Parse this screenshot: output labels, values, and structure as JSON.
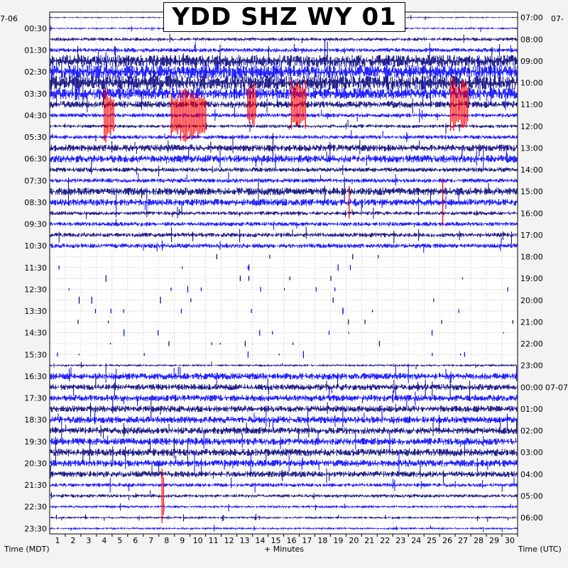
{
  "chart_data": {
    "type": "helicorder",
    "title": "YDD SHZ WY 01",
    "xlabel": "+ Minutes",
    "ylabel_left": "Time (MDT)",
    "ylabel_right": "Time (UTC)",
    "date_left": "7-06",
    "date_right_top": "07-",
    "date_right_rollover": "07-07",
    "xlim": [
      0,
      30
    ],
    "x_ticks": [
      "1",
      "2",
      "3",
      "4",
      "5",
      "6",
      "7",
      "8",
      "9",
      "10",
      "11",
      "12",
      "13",
      "14",
      "15",
      "16",
      "17",
      "18",
      "19",
      "20",
      "21",
      "22",
      "23",
      "24",
      "25",
      "26",
      "27",
      "28",
      "29",
      "30"
    ],
    "rows_count": 48,
    "row_minutes": 30,
    "left_labels": [
      "00:30",
      "01:30",
      "02:30",
      "03:30",
      "04:30",
      "05:30",
      "06:30",
      "07:30",
      "08:30",
      "09:30",
      "10:30",
      "11:30",
      "12:30",
      "13:30",
      "14:30",
      "15:30",
      "16:30",
      "17:30",
      "18:30",
      "19:30",
      "20:30",
      "21:30",
      "22:30",
      "23:30"
    ],
    "right_labels": [
      "07:00",
      "08:00",
      "09:00",
      "10:00",
      "11:00",
      "12:00",
      "13:00",
      "14:00",
      "15:00",
      "16:00",
      "17:00",
      "18:00",
      "19:00",
      "20:00",
      "21:00",
      "22:00",
      "23:00",
      "00:00",
      "01:00",
      "02:00",
      "03:00",
      "04:00",
      "05:00",
      "06:00"
    ],
    "trace_colors": [
      "#00007a",
      "#0000ff"
    ],
    "clip_color": "#ff0000",
    "grid": true,
    "grid_color": "#9a9a9a",
    "background": "#ffffff",
    "amplitude_levels": [
      0.18,
      0.25,
      0.45,
      0.55,
      1.6,
      1.8,
      1.9,
      1.5,
      0.9,
      0.55,
      0.45,
      0.5,
      0.9,
      1.0,
      0.6,
      0.55,
      1.0,
      0.9,
      0.5,
      0.55,
      0.6,
      0.6,
      0.01,
      0.01,
      0.01,
      0.01,
      0.01,
      0.01,
      0.01,
      0.01,
      0.01,
      0.01,
      0.3,
      0.85,
      0.8,
      0.85,
      0.85,
      0.9,
      0.9,
      0.95,
      1.0,
      0.9,
      0.8,
      0.5,
      0.45,
      0.35,
      0.3,
      0.3
    ],
    "clipped_segments": [
      {
        "row": 9,
        "start_min": 3.5,
        "end_min": 4.2
      },
      {
        "row": 9,
        "start_min": 7.8,
        "end_min": 10.1
      },
      {
        "row": 8,
        "start_min": 12.7,
        "end_min": 13.3
      },
      {
        "row": 8,
        "start_min": 15.5,
        "end_min": 16.5
      },
      {
        "row": 8,
        "start_min": 25.7,
        "end_min": 26.9
      },
      {
        "row": 17,
        "start_min": 19.2,
        "end_min": 19.3
      },
      {
        "row": 17,
        "start_min": 25.2,
        "end_min": 25.3
      },
      {
        "row": 44,
        "start_min": 7.2,
        "end_min": 7.4
      }
    ]
  }
}
